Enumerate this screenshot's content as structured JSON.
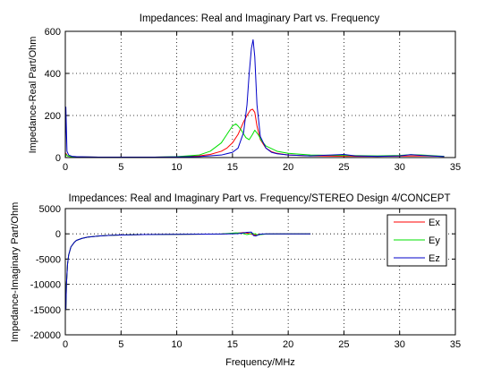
{
  "colors": {
    "Ex": "#ff0000",
    "Ey": "#00e000",
    "Ez": "#0000c8",
    "axes": "#000000",
    "grid": "#000000"
  },
  "chart_data": [
    {
      "type": "line",
      "title": "Impedances: Real and Imaginary Part vs. Frequency",
      "xlabel": "",
      "ylabel": "Impedance-Real Part/Ohm",
      "xlim": [
        0,
        35
      ],
      "ylim": [
        0,
        600
      ],
      "xticks": [
        0,
        5,
        10,
        15,
        20,
        25,
        30,
        35
      ],
      "yticks": [
        0,
        200,
        400,
        600
      ],
      "xtick_labels": [
        "0",
        "5",
        "10",
        "15",
        "20",
        "25",
        "30",
        "35"
      ],
      "ytick_labels": [
        "0",
        "200",
        "400",
        "600"
      ],
      "grid": true,
      "series": [
        {
          "name": "Ex",
          "color": "#ff0000",
          "x": [
            0,
            0.05,
            0.2,
            0.5,
            1,
            3,
            5,
            8,
            10,
            12,
            13,
            14,
            14.5,
            15,
            15.5,
            16,
            16.3,
            16.6,
            16.8,
            17,
            17.2,
            17.5,
            18,
            18.5,
            19,
            20,
            22,
            25,
            28,
            30,
            32,
            34
          ],
          "y": [
            0,
            20,
            8,
            4,
            3,
            2,
            2,
            2,
            3,
            8,
            15,
            30,
            45,
            70,
            110,
            170,
            200,
            225,
            230,
            215,
            150,
            85,
            45,
            28,
            20,
            12,
            8,
            6,
            6,
            7,
            8,
            6
          ]
        },
        {
          "name": "Ey",
          "color": "#00e000",
          "x": [
            0,
            0.05,
            0.2,
            0.5,
            1,
            3,
            5,
            8,
            10,
            12,
            13,
            14,
            14.5,
            15,
            15.3,
            15.5,
            15.8,
            16.2,
            16.5,
            16.8,
            17,
            17.3,
            17.6,
            18,
            19,
            20,
            22,
            25,
            28,
            30,
            31,
            32,
            34
          ],
          "y": [
            0,
            15,
            8,
            4,
            3,
            2,
            2,
            2,
            4,
            12,
            30,
            70,
            110,
            150,
            160,
            150,
            130,
            95,
            85,
            110,
            130,
            110,
            80,
            55,
            30,
            20,
            12,
            10,
            8,
            10,
            14,
            12,
            6
          ]
        },
        {
          "name": "Ez",
          "color": "#0000c8",
          "x": [
            0,
            0.05,
            0.15,
            0.3,
            0.6,
            1,
            3,
            5,
            8,
            10,
            12,
            14,
            15,
            15.5,
            16,
            16.3,
            16.5,
            16.7,
            16.85,
            17,
            17.2,
            17.5,
            18,
            18.5,
            19,
            20,
            22,
            25,
            26,
            28,
            30,
            31,
            32,
            34
          ],
          "y": [
            0,
            240,
            30,
            12,
            6,
            4,
            2,
            2,
            2,
            3,
            5,
            12,
            25,
            45,
            120,
            250,
            400,
            520,
            560,
            480,
            250,
            100,
            45,
            25,
            18,
            12,
            8,
            15,
            8,
            6,
            8,
            14,
            10,
            5
          ]
        }
      ]
    },
    {
      "type": "line",
      "title": "Impedances: Real and Imaginary Part vs. Frequency/STEREO Design 4/CONCEPT",
      "xlabel": "Frequency/MHz",
      "ylabel": "Impedance-Imaginary Part/Ohm",
      "xlim": [
        0,
        35
      ],
      "ylim": [
        -20000,
        5000
      ],
      "xticks": [
        0,
        5,
        10,
        15,
        20,
        25,
        30,
        35
      ],
      "yticks": [
        -20000,
        -15000,
        -10000,
        -5000,
        0,
        5000
      ],
      "xtick_labels": [
        "0",
        "5",
        "10",
        "15",
        "20",
        "25",
        "30",
        "35"
      ],
      "ytick_labels": [
        "-20000",
        "-15000",
        "-10000",
        "-5000",
        "0",
        "5000"
      ],
      "grid": true,
      "legend": {
        "placement": "top-right",
        "entries": [
          "Ex",
          "Ey",
          "Ez"
        ]
      },
      "series": [
        {
          "name": "Ex",
          "color": "#ff0000",
          "x": [
            0.05,
            0.1,
            0.2,
            0.3,
            0.5,
            0.8,
            1,
            1.5,
            2,
            3,
            4,
            5,
            7,
            10,
            14,
            15.5,
            16,
            16.5,
            17,
            17.5,
            18,
            20,
            22
          ],
          "y": [
            -15000,
            -10000,
            -6000,
            -4200,
            -2600,
            -1700,
            -1300,
            -900,
            -650,
            -420,
            -300,
            -220,
            -150,
            -90,
            -40,
            150,
            250,
            50,
            -250,
            -100,
            -30,
            -15,
            -10
          ]
        },
        {
          "name": "Ey",
          "color": "#00e000",
          "x": [
            0.05,
            0.1,
            0.2,
            0.3,
            0.5,
            0.8,
            1,
            1.5,
            2,
            3,
            4,
            5,
            7,
            10,
            14,
            15.3,
            15.8,
            16.3,
            16.8,
            17.3,
            18,
            20,
            22
          ],
          "y": [
            -15000,
            -10000,
            -6000,
            -4200,
            -2600,
            -1700,
            -1300,
            -900,
            -650,
            -420,
            -300,
            -220,
            -150,
            -90,
            -40,
            200,
            150,
            -150,
            100,
            -200,
            -30,
            -15,
            -10
          ]
        },
        {
          "name": "Ez",
          "color": "#0000c8",
          "x": [
            0.05,
            0.1,
            0.2,
            0.3,
            0.5,
            0.8,
            1,
            1.5,
            2,
            3,
            4,
            5,
            7,
            10,
            14,
            15.5,
            16.3,
            16.7,
            16.9,
            17.1,
            17.5,
            18,
            20,
            22
          ],
          "y": [
            -15000,
            -10000,
            -6000,
            -4200,
            -2600,
            -1700,
            -1300,
            -900,
            -650,
            -420,
            -300,
            -220,
            -150,
            -90,
            -40,
            30,
            300,
            350,
            -350,
            -420,
            -60,
            -20,
            -10,
            -10
          ]
        }
      ]
    }
  ]
}
